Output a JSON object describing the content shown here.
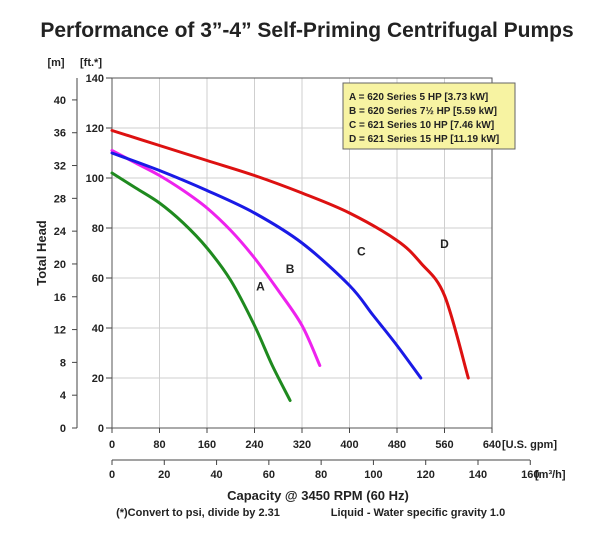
{
  "chart_data": {
    "type": "line",
    "title": "Performance of 3”-4” Self-Priming Centrifugal Pumps",
    "ylabel": "Total Head",
    "xlabel": "Capacity @ 3450 RPM (60 Hz)",
    "x_primary_unit": "[U.S. gpm]",
    "x_secondary_unit": "[m³/h]",
    "y_primary_unit": "[ft.*]",
    "y_secondary_unit": "[m]",
    "xlim": [
      0,
      640
    ],
    "ylim": [
      0,
      140
    ],
    "x_ticks": [
      "0",
      "80",
      "160",
      "240",
      "320",
      "400",
      "480",
      "560",
      "640"
    ],
    "y_ticks_ft": [
      "0",
      "20",
      "40",
      "60",
      "80",
      "100",
      "120",
      "140"
    ],
    "y_ticks_m": [
      "0",
      "4",
      "8",
      "12",
      "16",
      "20",
      "24",
      "28",
      "32",
      "36",
      "40"
    ],
    "x2_ticks": [
      "0",
      "20",
      "40",
      "60",
      "80",
      "100",
      "120",
      "140",
      "160"
    ],
    "grid": true,
    "legend": {
      "position": "top-right",
      "entries": [
        "A = 620 Series 5 HP [3.73 kW]",
        "B = 620 Series 7½ HP [5.59 kW]",
        "C = 621 Series 10 HP [7.46 kW]",
        "D = 621 Series 15 HP [11.19 kW]"
      ]
    },
    "series": [
      {
        "name": "A",
        "color": "#1f8a1f",
        "x": [
          0,
          40,
          80,
          120,
          160,
          200,
          240,
          270,
          300
        ],
        "y": [
          102,
          96,
          90,
          82,
          72,
          59,
          41,
          25,
          11
        ]
      },
      {
        "name": "B",
        "color": "#ee22ee",
        "x": [
          0,
          40,
          80,
          120,
          160,
          200,
          240,
          280,
          320,
          350
        ],
        "y": [
          111,
          106,
          101,
          95,
          88,
          79,
          68,
          55,
          41,
          25
        ]
      },
      {
        "name": "C",
        "color": "#1a1ae6",
        "x": [
          0,
          80,
          160,
          240,
          320,
          400,
          440,
          480,
          520
        ],
        "y": [
          110,
          103,
          95,
          86,
          74,
          57,
          45,
          33,
          20
        ]
      },
      {
        "name": "D",
        "color": "#dd1111",
        "x": [
          0,
          80,
          160,
          240,
          320,
          400,
          480,
          520,
          560,
          600
        ],
        "y": [
          119,
          113,
          107,
          101,
          94,
          86,
          75,
          66,
          53,
          20
        ]
      }
    ],
    "footnote_left": "(*)Convert to psi, divide by 2.31",
    "footnote_right": "Liquid - Water specific gravity 1.0"
  }
}
